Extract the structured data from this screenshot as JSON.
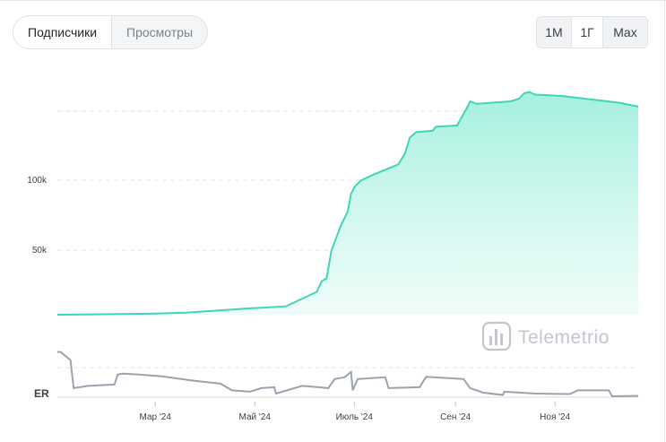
{
  "tabs": [
    {
      "label": "Подписчики",
      "active": true
    },
    {
      "label": "Просмотры",
      "active": false
    }
  ],
  "ranges": [
    {
      "label": "1M",
      "active": false
    },
    {
      "label": "1Г",
      "active": true
    },
    {
      "label": "Max",
      "active": false
    }
  ],
  "watermark": {
    "text": "Telemetrio",
    "icon": "bar-chart-icon"
  },
  "colors": {
    "line": "#3fd6b8",
    "fill": "#b9f1e4",
    "er_line": "#9aa3ae",
    "grid": "#e3e6ea"
  },
  "chart_data": [
    {
      "type": "area",
      "title": "",
      "series": [
        {
          "name": "Подписчики",
          "points": [
            [
              "2024-01-01",
              0
            ],
            [
              "2024-01-20",
              200
            ],
            [
              "2024-02-10",
              500
            ],
            [
              "2024-03-01",
              800
            ],
            [
              "2024-03-20",
              1500
            ],
            [
              "2024-04-10",
              3300
            ],
            [
              "2024-04-25",
              4500
            ],
            [
              "2024-05-10",
              5500
            ],
            [
              "2024-05-20",
              6200
            ],
            [
              "2024-05-25",
              9000
            ],
            [
              "2024-06-01",
              13000
            ],
            [
              "2024-06-08",
              17000
            ],
            [
              "2024-06-11",
              25000
            ],
            [
              "2024-06-14",
              27000
            ],
            [
              "2024-06-17",
              48000
            ],
            [
              "2024-06-23",
              67000
            ],
            [
              "2024-06-27",
              77000
            ],
            [
              "2024-06-29",
              90000
            ],
            [
              "2024-07-01",
              95000
            ],
            [
              "2024-07-05",
              100000
            ],
            [
              "2024-07-12",
              104000
            ],
            [
              "2024-07-22",
              109000
            ],
            [
              "2024-07-28",
              112000
            ],
            [
              "2024-08-01",
              120000
            ],
            [
              "2024-08-04",
              132000
            ],
            [
              "2024-08-08",
              136000
            ],
            [
              "2024-08-18",
              137000
            ],
            [
              "2024-08-20",
              140000
            ],
            [
              "2024-09-02",
              141000
            ],
            [
              "2024-09-08",
              154000
            ],
            [
              "2024-09-10",
              159000
            ],
            [
              "2024-09-14",
              157000
            ],
            [
              "2024-10-05",
              159000
            ],
            [
              "2024-10-10",
              161000
            ],
            [
              "2024-10-13",
              165000
            ],
            [
              "2024-10-16",
              166000
            ],
            [
              "2024-10-20",
              164000
            ],
            [
              "2024-11-05",
              163000
            ],
            [
              "2024-12-10",
              158000
            ],
            [
              "2024-12-22",
              155000
            ]
          ]
        }
      ],
      "y_ticks": [
        "50k",
        "100k"
      ],
      "ylim": [
        0,
        175000
      ],
      "grid": true
    },
    {
      "type": "line",
      "title": "",
      "ylabel": "ER",
      "series": [
        {
          "name": "ER",
          "points": [
            [
              "2024-01-01",
              1.0
            ],
            [
              "2024-01-03",
              1.0
            ],
            [
              "2024-01-09",
              0.82
            ],
            [
              "2024-01-11",
              0.2
            ],
            [
              "2024-01-20",
              0.25
            ],
            [
              "2024-02-05",
              0.28
            ],
            [
              "2024-02-07",
              0.5
            ],
            [
              "2024-02-10",
              0.52
            ],
            [
              "2024-02-20",
              0.5
            ],
            [
              "2024-03-05",
              0.46
            ],
            [
              "2024-03-25",
              0.36
            ],
            [
              "2024-04-10",
              0.3
            ],
            [
              "2024-04-17",
              0.15
            ],
            [
              "2024-04-28",
              0.12
            ],
            [
              "2024-05-05",
              0.2
            ],
            [
              "2024-05-13",
              0.22
            ],
            [
              "2024-05-14",
              0.08
            ],
            [
              "2024-05-30",
              0.25
            ],
            [
              "2024-06-09",
              0.22
            ],
            [
              "2024-06-15",
              0.2
            ],
            [
              "2024-06-19",
              0.4
            ],
            [
              "2024-06-25",
              0.44
            ],
            [
              "2024-06-29",
              0.56
            ],
            [
              "2024-06-30",
              0.15
            ],
            [
              "2024-07-03",
              0.4
            ],
            [
              "2024-07-20",
              0.44
            ],
            [
              "2024-07-22",
              0.2
            ],
            [
              "2024-08-10",
              0.22
            ],
            [
              "2024-08-14",
              0.45
            ],
            [
              "2024-09-06",
              0.4
            ],
            [
              "2024-09-10",
              0.2
            ],
            [
              "2024-09-18",
              0.1
            ],
            [
              "2024-09-30",
              0.05
            ],
            [
              "2024-10-01",
              0.12
            ],
            [
              "2024-10-20",
              0.08
            ],
            [
              "2024-11-10",
              0.07
            ],
            [
              "2024-11-15",
              0.15
            ],
            [
              "2024-12-04",
              0.15
            ],
            [
              "2024-12-06",
              0.02
            ],
            [
              "2024-12-22",
              0.03
            ]
          ]
        }
      ],
      "ylim": [
        0,
        1.15
      ]
    }
  ],
  "x_ticks": [
    {
      "label": "Мар '24",
      "date": "2024-03-01"
    },
    {
      "label": "Май '24",
      "date": "2024-05-01"
    },
    {
      "label": "Июль '24",
      "date": "2024-07-01"
    },
    {
      "label": "Сен '24",
      "date": "2024-09-01"
    },
    {
      "label": "Ноя '24",
      "date": "2024-11-01"
    }
  ],
  "x_range": [
    "2024-01-01",
    "2024-12-22"
  ]
}
